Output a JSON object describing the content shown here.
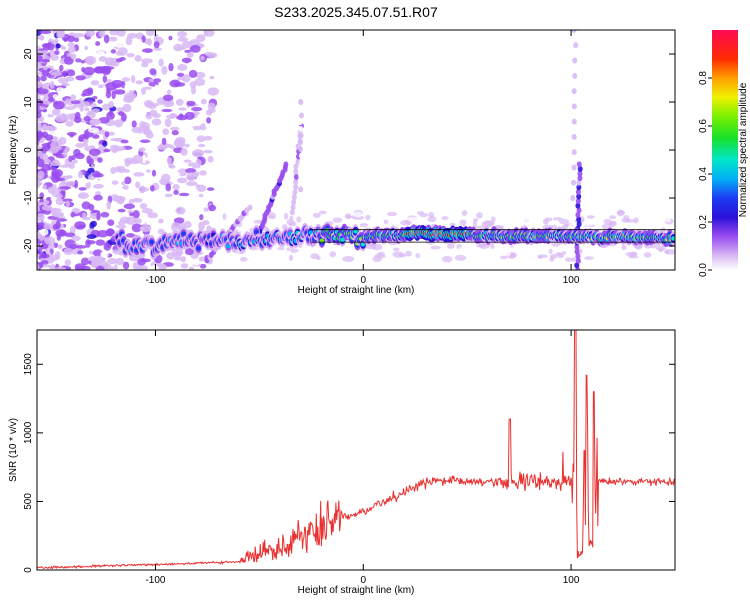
{
  "title": "S233.2025.345.07.51.R07",
  "chart_data": [
    {
      "type": "heatmap",
      "xlabel": "Height of straight line (km)",
      "ylabel": "Frequency (Hz)",
      "xlim": [
        -157,
        150
      ],
      "ylim": [
        -25,
        25
      ],
      "xticks": [
        -100,
        0,
        100
      ],
      "yticks": [
        -20,
        -10,
        0,
        10,
        20
      ],
      "colorbar": {
        "label": "Normalized spectral amplitude",
        "range": [
          0,
          1
        ],
        "ticks": [
          "0.0",
          "0.2",
          "0.4",
          "0.6",
          "0.8"
        ]
      },
      "ridge": {
        "description_points": [
          [
            -115,
            -20.5
          ],
          [
            -100,
            -19.5
          ],
          [
            -80,
            -18.5
          ],
          [
            -60,
            -18.8
          ],
          [
            -40,
            -18.5
          ],
          [
            -20,
            -17.5
          ],
          [
            0,
            -18
          ],
          [
            30,
            -17.2
          ],
          [
            60,
            -18
          ],
          [
            90,
            -18
          ],
          [
            110,
            -18
          ],
          [
            150,
            -18.5
          ]
        ],
        "peak_amplitude_range_x": [
          20,
          50
        ]
      }
    },
    {
      "type": "line",
      "xlabel": "Height of straight line (km)",
      "ylabel": "SNR (10 * v/v)",
      "xlim": [
        -157,
        150
      ],
      "ylim": [
        0,
        1750
      ],
      "xticks": [
        -100,
        0,
        100
      ],
      "yticks": [
        0,
        500,
        1000,
        1500
      ],
      "series": [
        {
          "name": "SNR",
          "color": "#e83030",
          "x": [
            -157,
            -120,
            -100,
            -80,
            -65,
            -55,
            -45,
            -40,
            -35,
            -30,
            -20,
            -10,
            0,
            10,
            20,
            30,
            40,
            50,
            60,
            65,
            70,
            75,
            80,
            85,
            90,
            95,
            100,
            102,
            104,
            106,
            108,
            110,
            112,
            115,
            120,
            130,
            150
          ],
          "values": [
            15,
            20,
            30,
            45,
            70,
            120,
            190,
            220,
            260,
            280,
            290,
            330,
            430,
            530,
            600,
            640,
            650,
            660,
            650,
            700,
            600,
            620,
            640,
            610,
            630,
            650,
            700,
            1750,
            80,
            1400,
            600,
            1300,
            620,
            650,
            640,
            650,
            660
          ]
        }
      ]
    }
  ]
}
